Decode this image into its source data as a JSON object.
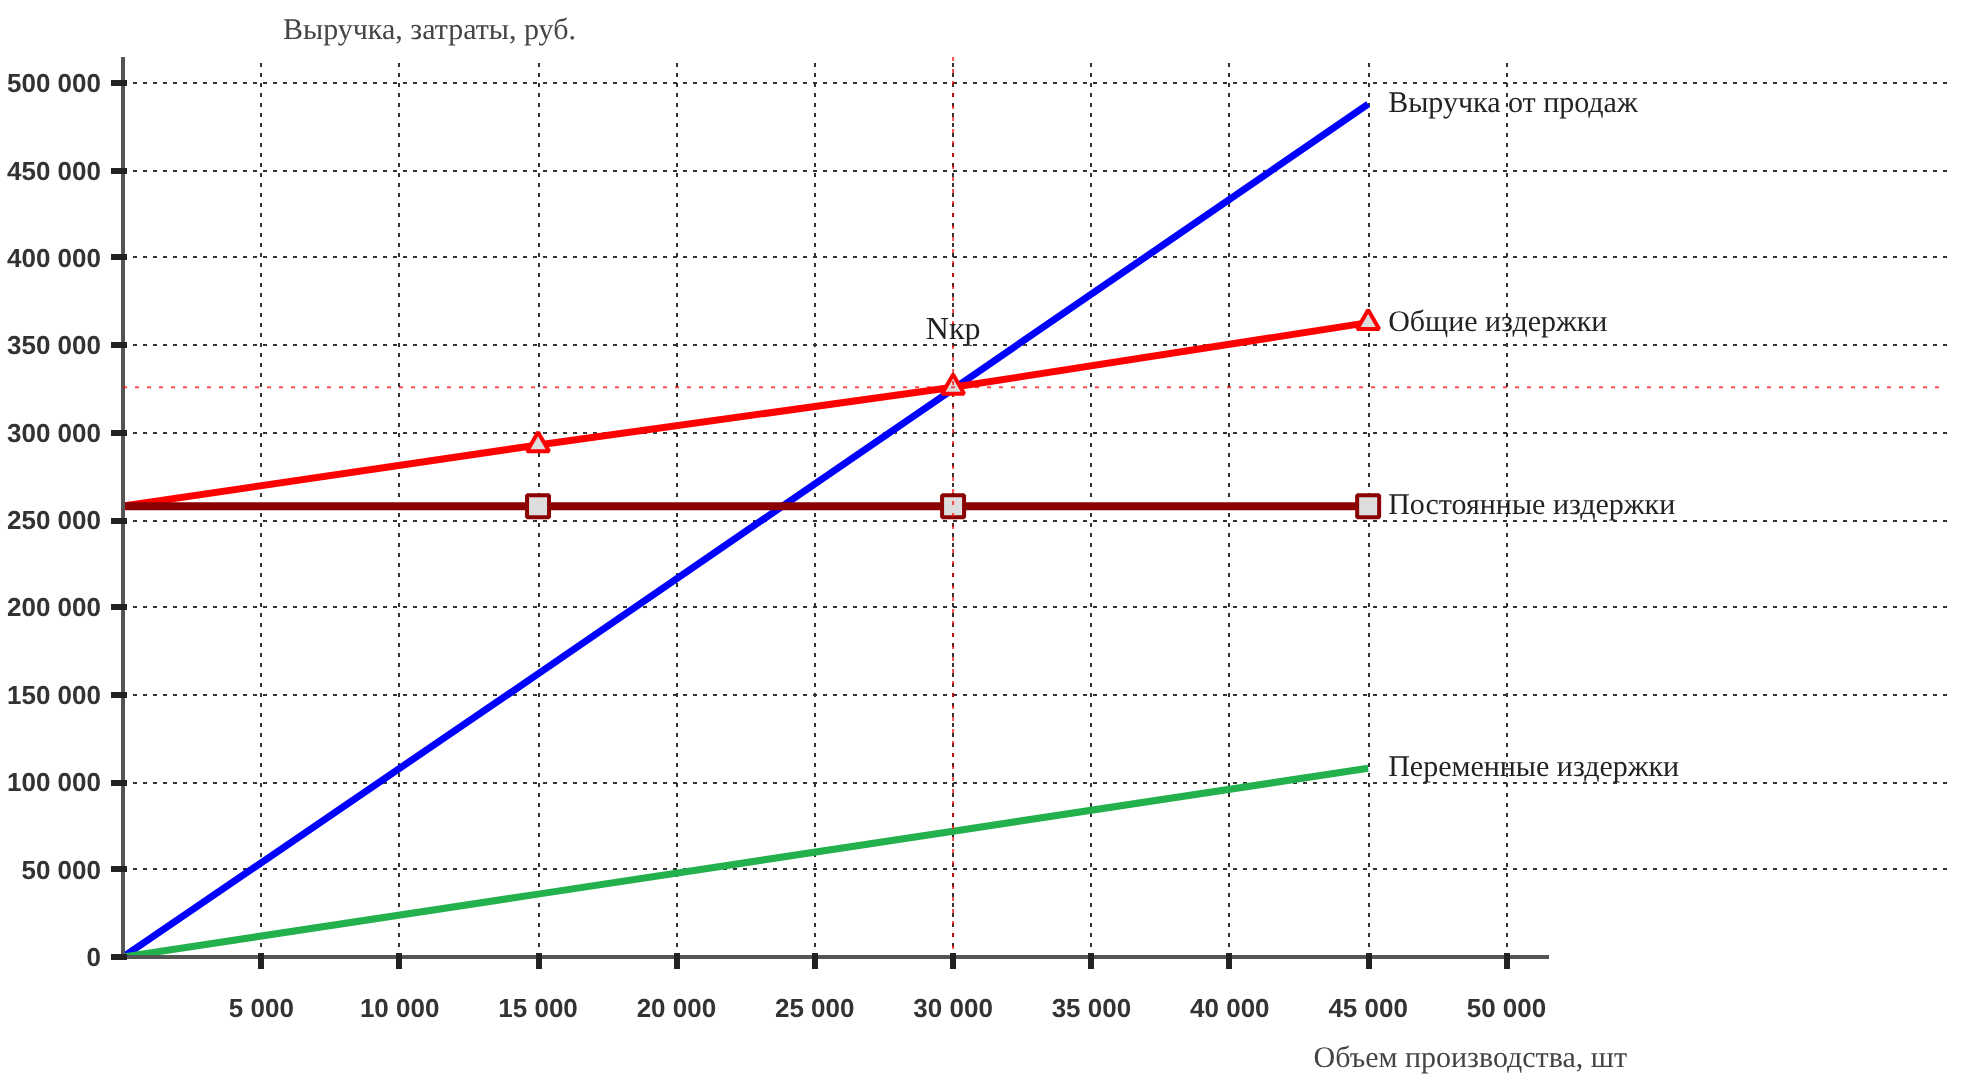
{
  "chart_data": {
    "type": "line",
    "xlabel": "Объем производства, шт",
    "ylabel": "Выручка, затраты, руб.",
    "x": [
      0,
      15000,
      30000,
      45000
    ],
    "series": [
      {
        "name": "Выручка от продаж",
        "color": "#0000ff",
        "values": [
          0,
          162000,
          325000,
          488000
        ],
        "marker": "none"
      },
      {
        "name": "Общие издержки",
        "color": "#ff0000",
        "values": [
          258000,
          293000,
          326000,
          363000
        ],
        "marker": "triangle"
      },
      {
        "name": "Постоянные издержки",
        "color": "#8b0000",
        "values": [
          258000,
          258000,
          258000,
          258000
        ],
        "marker": "square"
      },
      {
        "name": "Переменные издержки",
        "color": "#22b14c",
        "values": [
          0,
          36000,
          72000,
          108000
        ],
        "marker": "none"
      }
    ],
    "xlim": [
      0,
      51500
    ],
    "ylim": [
      0,
      515000
    ],
    "xticks": [
      {
        "value": 5000,
        "label": "5 000"
      },
      {
        "value": 10000,
        "label": "10 000"
      },
      {
        "value": 15000,
        "label": "15 000"
      },
      {
        "value": 20000,
        "label": "20 000"
      },
      {
        "value": 25000,
        "label": "25 000"
      },
      {
        "value": 30000,
        "label": "30 000"
      },
      {
        "value": 35000,
        "label": "35 000"
      },
      {
        "value": 40000,
        "label": "40 000"
      },
      {
        "value": 45000,
        "label": "45 000"
      },
      {
        "value": 50000,
        "label": "50 000"
      }
    ],
    "yticks": [
      0,
      {
        "value": 50000,
        "label": "50 000"
      },
      {
        "value": 100000,
        "label": "100 000"
      },
      {
        "value": 150000,
        "label": "150 000"
      },
      {
        "value": 200000,
        "label": "200 000"
      },
      {
        "value": 250000,
        "label": "250 000"
      },
      {
        "value": 300000,
        "label": "300 000"
      },
      {
        "value": 350000,
        "label": "350 000"
      },
      {
        "value": 400000,
        "label": "400 000"
      },
      {
        "value": 450000,
        "label": "450 000"
      },
      {
        "value": 500000,
        "label": "500 000"
      }
    ],
    "ref_lines": [
      {
        "axis": "y",
        "value": 326000,
        "color": "#ff0000",
        "line_style": "dotted"
      },
      {
        "axis": "x",
        "value": 30000,
        "color": "#ff0000",
        "line_style": "dotted"
      }
    ],
    "annotations": [
      {
        "text": "Nкр",
        "x": 30000,
        "y": 326000
      }
    ],
    "grid": true,
    "legend": false,
    "line_style": "solid"
  }
}
